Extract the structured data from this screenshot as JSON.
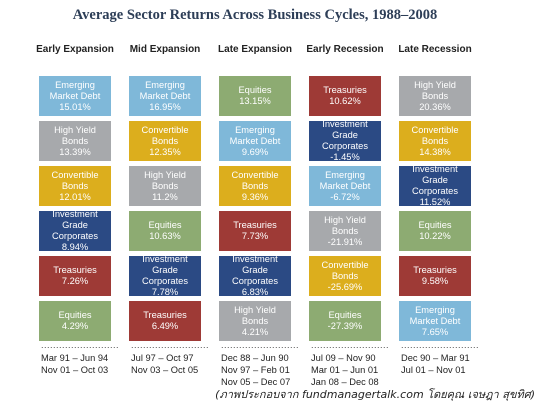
{
  "chart_data": {
    "type": "table",
    "title": "Average Sector Returns Across Business Cycles, 1988–2008",
    "phases": [
      {
        "label": "Early Expansion",
        "cells": [
          {
            "sector": "Emerging Market Debt",
            "value": "15.01%",
            "color": "#7fb8d9"
          },
          {
            "sector": "High Yield Bonds",
            "value": "13.39%",
            "color": "#a7a9ac"
          },
          {
            "sector": "Convertible Bonds",
            "value": "12.01%",
            "color": "#dcae1d"
          },
          {
            "sector": "Investment Grade Corporates",
            "value": "8.94%",
            "color": "#2b4a84"
          },
          {
            "sector": "Treasuries",
            "value": "7.26%",
            "color": "#9e3a36"
          },
          {
            "sector": "Equities",
            "value": "4.29%",
            "color": "#8dab72"
          }
        ],
        "dates": [
          "Mar 91 – Jun 94",
          "Nov 01 – Oct 03"
        ]
      },
      {
        "label": "Mid Expansion",
        "cells": [
          {
            "sector": "Emerging Market Debt",
            "value": "16.95%",
            "color": "#7fb8d9"
          },
          {
            "sector": "Convertible Bonds",
            "value": "12.35%",
            "color": "#dcae1d"
          },
          {
            "sector": "High Yield Bonds",
            "value": "11.2%",
            "color": "#a7a9ac"
          },
          {
            "sector": "Equities",
            "value": "10.63%",
            "color": "#8dab72"
          },
          {
            "sector": "Investment Grade Corporates",
            "value": "7.78%",
            "color": "#2b4a84"
          },
          {
            "sector": "Treasuries",
            "value": "6.49%",
            "color": "#9e3a36"
          }
        ],
        "dates": [
          "Jul 97 – Oct 97",
          "Nov 03 – Oct 05"
        ]
      },
      {
        "label": "Late Expansion",
        "cells": [
          {
            "sector": "Equities",
            "value": "13.15%",
            "color": "#8dab72"
          },
          {
            "sector": "Emerging Market Debt",
            "value": "9.69%",
            "color": "#7fb8d9"
          },
          {
            "sector": "Convertible Bonds",
            "value": "9.36%",
            "color": "#dcae1d"
          },
          {
            "sector": "Treasuries",
            "value": "7.73%",
            "color": "#9e3a36"
          },
          {
            "sector": "Investment Grade Corporates",
            "value": "6.83%",
            "color": "#2b4a84"
          },
          {
            "sector": "High Yield Bonds",
            "value": "4.21%",
            "color": "#a7a9ac"
          }
        ],
        "dates": [
          "Dec 88 – Jun 90",
          "Nov 97 – Feb 01",
          "Nov 05 – Dec 07"
        ]
      },
      {
        "label": "Early Recession",
        "cells": [
          {
            "sector": "Treasuries",
            "value": "10.62%",
            "color": "#9e3a36"
          },
          {
            "sector": "Investment Grade Corporates",
            "value": "-1.45%",
            "color": "#2b4a84"
          },
          {
            "sector": "Emerging Market Debt",
            "value": "-6.72%",
            "color": "#7fb8d9"
          },
          {
            "sector": "High Yield Bonds",
            "value": "-21.91%",
            "color": "#a7a9ac"
          },
          {
            "sector": "Convertible Bonds",
            "value": "-25.69%",
            "color": "#dcae1d"
          },
          {
            "sector": "Equities",
            "value": "-27.39%",
            "color": "#8dab72"
          }
        ],
        "dates": [
          "Jul 09 – Nov 90",
          "Mar 01 – Jun 01",
          "Jan 08 – Dec 08"
        ]
      },
      {
        "label": "Late Recession",
        "cells": [
          {
            "sector": "High Yield Bonds",
            "value": "20.36%",
            "color": "#a7a9ac"
          },
          {
            "sector": "Convertible Bonds",
            "value": "14.38%",
            "color": "#dcae1d"
          },
          {
            "sector": "Investment Grade Corporates",
            "value": "11.52%",
            "color": "#2b4a84"
          },
          {
            "sector": "Equities",
            "value": "10.22%",
            "color": "#8dab72"
          },
          {
            "sector": "Treasuries",
            "value": "9.58%",
            "color": "#9e3a36"
          },
          {
            "sector": "Emerging Market Debt",
            "value": "7.65%",
            "color": "#7fb8d9"
          }
        ],
        "dates": [
          "Dec 90 – Mar 91",
          "Jul 01 – Nov 01"
        ]
      }
    ]
  },
  "caption": "(ภาพประกอบจาก fundmanagertalk.com โดยคุณ เจษฎา สุขทิศ)"
}
